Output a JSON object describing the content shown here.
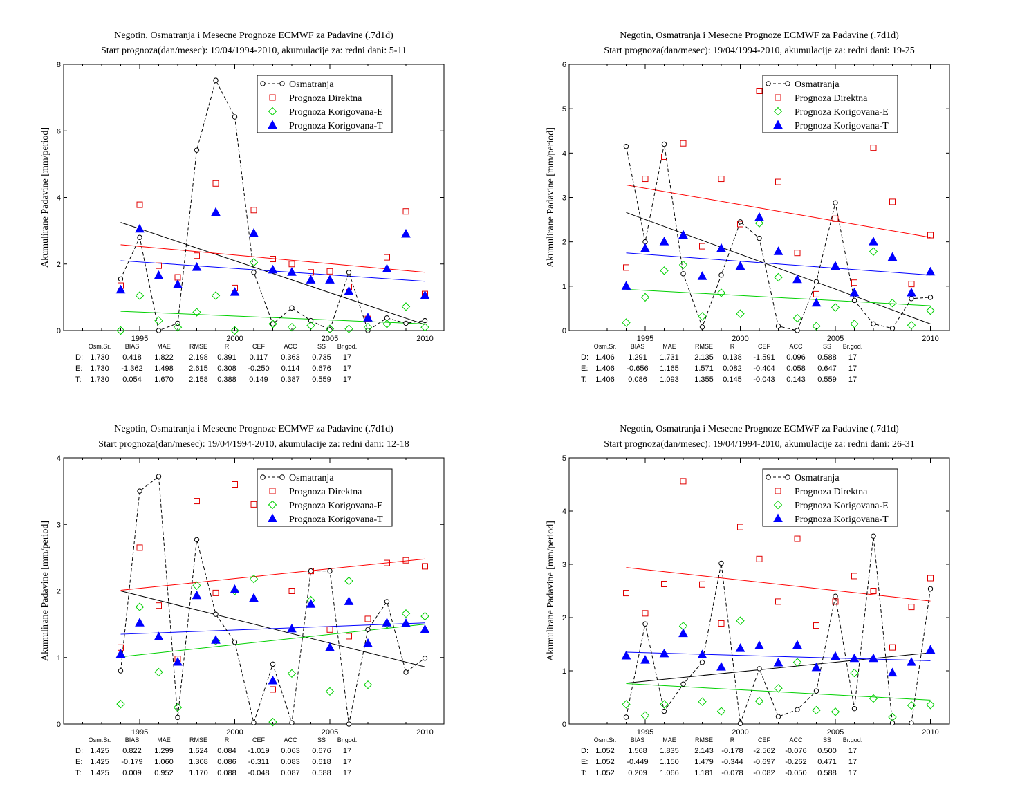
{
  "chart_data": [
    {
      "type": "scatter",
      "title": "Negotin, Osmatranja i Mesecne Prognoze ECMWF za Padavine (.7d1d)",
      "subtitle": "Start prognoza(dan/mesec): 19/04/1994-2010, akumulacije za: redni dani: 5-11",
      "ylabel": "Akumulirane Padavine [mm/period]",
      "xlim": [
        1991,
        2011
      ],
      "ylim": [
        0,
        8
      ],
      "xticks": [
        1995,
        2000,
        2005,
        2010
      ],
      "yticks": [
        0,
        2,
        4,
        6,
        8
      ],
      "x": [
        1994,
        1995,
        1996,
        1997,
        1998,
        1999,
        2000,
        2001,
        2002,
        2003,
        2004,
        2005,
        2006,
        2007,
        2008,
        2009,
        2010
      ],
      "legend_position": "top-right",
      "series": [
        {
          "name": "Osmatranja",
          "style": "obs",
          "color": "#000000",
          "values": [
            1.55,
            2.8,
            0.0,
            0.22,
            5.42,
            7.52,
            6.42,
            1.75,
            0.2,
            0.68,
            0.3,
            0.02,
            1.75,
            0.0,
            0.38,
            0.22,
            0.3
          ]
        },
        {
          "name": "Prognoza Direktna",
          "style": "square",
          "color": "#e00000",
          "values": [
            1.35,
            3.78,
            1.95,
            1.6,
            2.25,
            4.42,
            1.28,
            3.62,
            2.15,
            2.0,
            1.75,
            1.78,
            1.32,
            0.35,
            2.2,
            3.58,
            1.1
          ]
        },
        {
          "name": "Prognoza Korigovana-E",
          "style": "diamond",
          "color": "#00d000",
          "values": [
            0.0,
            1.05,
            0.3,
            0.1,
            0.55,
            1.05,
            0.0,
            2.05,
            0.2,
            0.1,
            0.15,
            0.05,
            0.05,
            0.1,
            0.2,
            0.72,
            0.1
          ]
        },
        {
          "name": "Prognoza Korigovana-T",
          "style": "triangle",
          "color": "#0000ff",
          "values": [
            1.22,
            3.05,
            1.65,
            1.38,
            1.9,
            3.55,
            1.15,
            2.92,
            1.82,
            1.75,
            1.52,
            1.52,
            1.18,
            0.38,
            1.85,
            2.9,
            1.05
          ]
        }
      ],
      "trends": [
        {
          "color": "#000000",
          "start": [
            1994,
            3.25
          ],
          "end": [
            2010,
            0.18
          ]
        },
        {
          "color": "#ff0000",
          "start": [
            1994,
            2.58
          ],
          "end": [
            2010,
            1.75
          ]
        },
        {
          "color": "#0000ff",
          "start": [
            1994,
            2.1
          ],
          "end": [
            2010,
            1.48
          ]
        },
        {
          "color": "#00d000",
          "start": [
            1994,
            0.58
          ],
          "end": [
            2010,
            0.2
          ]
        }
      ],
      "stats": {
        "headers": [
          "Osm.Sr.",
          "BIAS",
          "MAE",
          "RMSE",
          "R",
          "CEF",
          "ACC",
          "SS",
          "Br.god."
        ],
        "rows": [
          {
            "label": "D:",
            "color": "#e00000",
            "values": [
              "1.730",
              "0.418",
              "1.822",
              "2.198",
              "0.391",
              "0.117",
              "0.363",
              "0.735",
              "17"
            ]
          },
          {
            "label": "E:",
            "color": "#00c000",
            "values": [
              "1.730",
              "-1.362",
              "1.498",
              "2.615",
              "0.308",
              "-0.250",
              "0.114",
              "0.676",
              "17"
            ]
          },
          {
            "label": "T:",
            "color": "#0000ff",
            "values": [
              "1.730",
              "0.054",
              "1.670",
              "2.158",
              "0.388",
              "0.149",
              "0.387",
              "0.559",
              "17"
            ]
          }
        ]
      }
    },
    {
      "type": "scatter",
      "title": "Negotin, Osmatranja i Mesecne Prognoze ECMWF za Padavine (.7d1d)",
      "subtitle": "Start prognoza(dan/mesec): 19/04/1994-2010, akumulacije za: redni dani: 19-25",
      "ylabel": "Akumulirane Padavine [mm/period]",
      "xlim": [
        1991,
        2011
      ],
      "ylim": [
        0,
        6
      ],
      "xticks": [
        1995,
        2000,
        2005,
        2010
      ],
      "yticks": [
        0,
        1,
        2,
        3,
        4,
        5,
        6
      ],
      "x": [
        1994,
        1995,
        1996,
        1997,
        1998,
        1999,
        2000,
        2001,
        2002,
        2003,
        2004,
        2005,
        2006,
        2007,
        2008,
        2009,
        2010
      ],
      "legend_position": "top-right",
      "series": [
        {
          "name": "Osmatranja",
          "style": "obs",
          "color": "#000000",
          "values": [
            4.15,
            2.0,
            4.2,
            1.28,
            0.08,
            1.25,
            2.45,
            2.08,
            0.1,
            0.0,
            1.1,
            2.88,
            0.68,
            0.15,
            0.05,
            0.72,
            0.75
          ]
        },
        {
          "name": "Prognoza Direktna",
          "style": "square",
          "color": "#e00000",
          "values": [
            1.42,
            3.42,
            3.92,
            4.22,
            1.9,
            3.42,
            2.4,
            5.4,
            3.35,
            1.75,
            0.82,
            2.52,
            1.08,
            4.12,
            2.9,
            1.05,
            2.15
          ]
        },
        {
          "name": "Prognoza Korigovana-E",
          "style": "diamond",
          "color": "#00d000",
          "values": [
            0.18,
            0.75,
            1.35,
            1.48,
            0.32,
            0.85,
            0.38,
            2.42,
            1.2,
            0.28,
            0.1,
            0.52,
            0.15,
            1.78,
            0.62,
            0.12,
            0.45
          ]
        },
        {
          "name": "Prognoza Korigovana-T",
          "style": "triangle",
          "color": "#0000ff",
          "values": [
            1.0,
            1.85,
            2.0,
            2.15,
            1.22,
            1.85,
            1.45,
            2.55,
            1.78,
            1.15,
            0.62,
            1.45,
            0.85,
            2.0,
            1.65,
            0.85,
            1.32
          ]
        }
      ],
      "trends": [
        {
          "color": "#000000",
          "start": [
            1994,
            2.66
          ],
          "end": [
            2010,
            0.15
          ]
        },
        {
          "color": "#ff0000",
          "start": [
            1994,
            3.28
          ],
          "end": [
            2010,
            2.1
          ]
        },
        {
          "color": "#0000ff",
          "start": [
            1994,
            1.75
          ],
          "end": [
            2010,
            1.25
          ]
        },
        {
          "color": "#00d000",
          "start": [
            1994,
            0.93
          ],
          "end": [
            2010,
            0.56
          ]
        }
      ],
      "stats": {
        "headers": [
          "Osm.Sr.",
          "BIAS",
          "MAE",
          "RMSE",
          "R",
          "CEF",
          "ACC",
          "SS",
          "Br.god."
        ],
        "rows": [
          {
            "label": "D:",
            "color": "#e00000",
            "values": [
              "1.406",
              "1.291",
              "1.731",
              "2.135",
              "0.138",
              "-1.591",
              "0.096",
              "0.588",
              "17"
            ]
          },
          {
            "label": "E:",
            "color": "#00c000",
            "values": [
              "1.406",
              "-0.656",
              "1.165",
              "1.571",
              "0.082",
              "-0.404",
              "0.058",
              "0.647",
              "17"
            ]
          },
          {
            "label": "T:",
            "color": "#0000ff",
            "values": [
              "1.406",
              "0.086",
              "1.093",
              "1.355",
              "0.145",
              "-0.043",
              "0.143",
              "0.559",
              "17"
            ]
          }
        ]
      }
    },
    {
      "type": "scatter",
      "title": "Negotin, Osmatranja i Mesecne Prognoze ECMWF za Padavine (.7d1d)",
      "subtitle": "Start prognoza(dan/mesec): 19/04/1994-2010, akumulacije za: redni dani: 12-18",
      "ylabel": "Akumulirane Padavine [mm/period]",
      "xlim": [
        1991,
        2011
      ],
      "ylim": [
        0,
        4
      ],
      "xticks": [
        1995,
        2000,
        2005,
        2010
      ],
      "yticks": [
        0,
        1,
        2,
        3,
        4
      ],
      "x": [
        1994,
        1995,
        1996,
        1997,
        1998,
        1999,
        2000,
        2001,
        2002,
        2003,
        2004,
        2005,
        2006,
        2007,
        2008,
        2009,
        2010
      ],
      "legend_position": "top-right",
      "series": [
        {
          "name": "Osmatranja",
          "style": "obs",
          "color": "#000000",
          "values": [
            0.8,
            3.5,
            3.72,
            0.1,
            2.77,
            1.65,
            1.23,
            0.02,
            0.9,
            0.02,
            2.3,
            2.3,
            0.0,
            1.42,
            1.84,
            0.78,
            0.99
          ]
        },
        {
          "name": "Prognoza Direktna",
          "style": "square",
          "color": "#e00000",
          "values": [
            1.15,
            2.65,
            1.78,
            0.98,
            3.35,
            1.97,
            3.6,
            3.3,
            0.52,
            2.0,
            2.3,
            1.42,
            1.32,
            1.58,
            2.42,
            2.46,
            2.37
          ]
        },
        {
          "name": "Prognoza Korigovana-E",
          "style": "diamond",
          "color": "#00d000",
          "values": [
            0.3,
            1.76,
            0.78,
            0.25,
            2.08,
            1.25,
            2.0,
            2.18,
            0.03,
            0.76,
            1.86,
            0.49,
            2.15,
            0.59,
            1.5,
            1.66,
            1.62
          ]
        },
        {
          "name": "Prognoza Korigovana-T",
          "style": "triangle",
          "color": "#0000ff",
          "values": [
            1.05,
            1.52,
            1.31,
            0.93,
            1.93,
            1.26,
            2.02,
            1.89,
            0.65,
            1.43,
            1.8,
            1.15,
            1.84,
            1.21,
            1.52,
            1.51,
            1.42
          ]
        }
      ],
      "trends": [
        {
          "color": "#000000",
          "start": [
            1994,
            2.0
          ],
          "end": [
            2010,
            0.86
          ]
        },
        {
          "color": "#ff0000",
          "start": [
            1994,
            2.01
          ],
          "end": [
            2010,
            2.48
          ]
        },
        {
          "color": "#0000ff",
          "start": [
            1994,
            1.35
          ],
          "end": [
            2010,
            1.52
          ]
        },
        {
          "color": "#00d000",
          "start": [
            1994,
            1.01
          ],
          "end": [
            2010,
            1.5
          ]
        }
      ],
      "stats": {
        "headers": [
          "Osm.Sr.",
          "BIAS",
          "MAE",
          "RMSE",
          "R",
          "CEF",
          "ACC",
          "SS",
          "Br.god."
        ],
        "rows": [
          {
            "label": "D:",
            "color": "#e00000",
            "values": [
              "1.425",
              "0.822",
              "1.299",
              "1.624",
              "0.084",
              "-1.019",
              "0.063",
              "0.676",
              "17"
            ]
          },
          {
            "label": "E:",
            "color": "#00c000",
            "values": [
              "1.425",
              "-0.179",
              "1.060",
              "1.308",
              "0.086",
              "-0.311",
              "0.083",
              "0.618",
              "17"
            ]
          },
          {
            "label": "T:",
            "color": "#0000ff",
            "values": [
              "1.425",
              "0.009",
              "0.952",
              "1.170",
              "0.088",
              "-0.048",
              "0.087",
              "0.588",
              "17"
            ]
          }
        ]
      }
    },
    {
      "type": "scatter",
      "title": "Negotin, Osmatranja i Mesecne Prognoze ECMWF za Padavine (.7d1d)",
      "subtitle": "Start prognoza(dan/mesec): 19/04/1994-2010, akumulacije za: redni dani: 26-31",
      "ylabel": "Akumulirane Padavine [mm/period]",
      "xlim": [
        1991,
        2011
      ],
      "ylim": [
        0,
        5
      ],
      "xticks": [
        1995,
        2000,
        2005,
        2010
      ],
      "yticks": [
        0,
        1,
        2,
        3,
        4,
        5
      ],
      "x": [
        1994,
        1995,
        1996,
        1997,
        1998,
        1999,
        2000,
        2001,
        2002,
        2003,
        2004,
        2005,
        2006,
        2007,
        2008,
        2009,
        2010
      ],
      "legend_position": "top-right",
      "series": [
        {
          "name": "Osmatranja",
          "style": "obs",
          "color": "#000000",
          "values": [
            0.13,
            1.88,
            0.24,
            0.75,
            1.16,
            3.02,
            0.01,
            1.04,
            0.14,
            0.27,
            0.62,
            2.4,
            0.29,
            3.53,
            0.02,
            0.02,
            2.54
          ]
        },
        {
          "name": "Prognoza Direktna",
          "style": "square",
          "color": "#e00000",
          "values": [
            2.46,
            2.08,
            2.63,
            4.56,
            2.62,
            1.89,
            3.7,
            3.1,
            2.3,
            3.48,
            1.85,
            2.3,
            2.78,
            2.5,
            1.44,
            2.2,
            2.74
          ]
        },
        {
          "name": "Prognoza Korigovana-E",
          "style": "diamond",
          "color": "#00d000",
          "values": [
            0.37,
            0.16,
            0.37,
            1.84,
            0.42,
            0.24,
            1.94,
            0.43,
            0.67,
            1.16,
            0.26,
            0.23,
            0.96,
            0.48,
            0.13,
            0.35,
            0.36
          ]
        },
        {
          "name": "Prognoza Korigovana-T",
          "style": "triangle",
          "color": "#0000ff",
          "values": [
            1.28,
            1.2,
            1.32,
            1.7,
            1.3,
            1.07,
            1.42,
            1.47,
            1.15,
            1.48,
            1.06,
            1.27,
            1.23,
            1.23,
            0.96,
            1.16,
            1.39
          ]
        }
      ],
      "trends": [
        {
          "color": "#000000",
          "start": [
            1994,
            0.77
          ],
          "end": [
            2010,
            1.34
          ]
        },
        {
          "color": "#ff0000",
          "start": [
            1994,
            2.94
          ],
          "end": [
            2010,
            2.31
          ]
        },
        {
          "color": "#0000ff",
          "start": [
            1994,
            1.35
          ],
          "end": [
            2010,
            1.19
          ]
        },
        {
          "color": "#00d000",
          "start": [
            1994,
            0.76
          ],
          "end": [
            2010,
            0.45
          ]
        }
      ],
      "stats": {
        "headers": [
          "Osm.Sr.",
          "BIAS",
          "MAE",
          "RMSE",
          "R",
          "CEF",
          "ACC",
          "SS",
          "Br.god."
        ],
        "rows": [
          {
            "label": "D:",
            "color": "#e00000",
            "values": [
              "1.052",
              "1.568",
              "1.835",
              "2.143",
              "-0.178",
              "-2.562",
              "-0.076",
              "0.500",
              "17"
            ]
          },
          {
            "label": "E:",
            "color": "#00c000",
            "values": [
              "1.052",
              "-0.449",
              "1.150",
              "1.479",
              "-0.344",
              "-0.697",
              "-0.262",
              "0.471",
              "17"
            ]
          },
          {
            "label": "T:",
            "color": "#0000ff",
            "values": [
              "1.052",
              "0.209",
              "1.066",
              "1.181",
              "-0.078",
              "-0.082",
              "-0.050",
              "0.588",
              "17"
            ]
          }
        ]
      }
    }
  ]
}
